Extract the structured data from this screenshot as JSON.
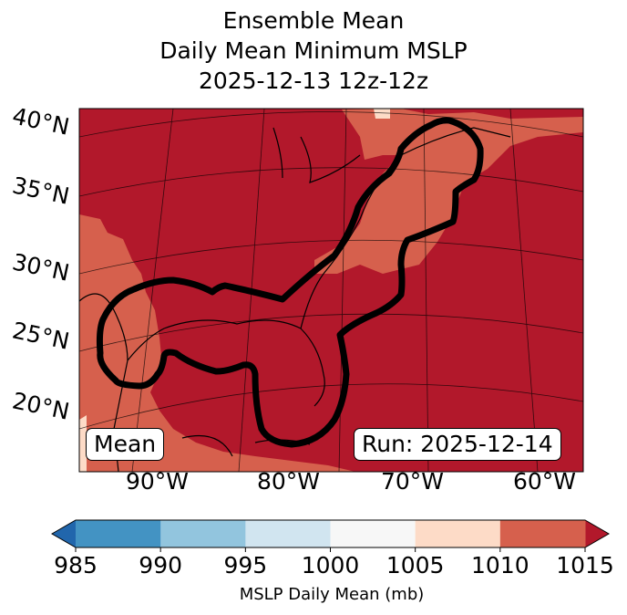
{
  "title": {
    "line1": "Ensemble Mean",
    "line2": "Daily Mean Minimum MSLP",
    "line3": "2025-12-13 12z-12z"
  },
  "lat_labels": [
    "40°N",
    "35°N",
    "30°N",
    "25°N",
    "20°N"
  ],
  "lon_labels": [
    "90°W",
    "80°W",
    "70°W",
    "60°W"
  ],
  "mean_label": "Mean",
  "run_label": "Run: 2025-12-14",
  "colorbar": {
    "ticks": [
      "985",
      "990",
      "995",
      "1000",
      "1005",
      "1010",
      "1015"
    ],
    "colors": [
      "#4393c3",
      "#92c5de",
      "#d1e5f0",
      "#f7f7f7",
      "#fddbc7",
      "#d6604d"
    ],
    "under_color": "#2166ac",
    "over_color": "#b2182b",
    "label": "MSLP Daily Mean (mb)"
  }
}
